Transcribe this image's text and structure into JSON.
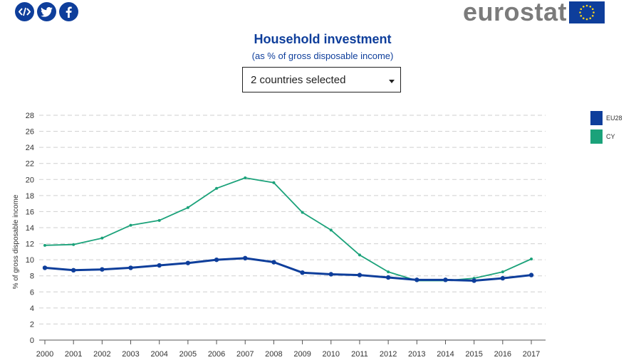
{
  "share": {
    "embed_icon": "embed-code-icon",
    "twitter_icon": "twitter-icon",
    "facebook_icon": "facebook-icon"
  },
  "brand": {
    "logo_text": "eurostat",
    "flag_icon": "eu-flag-icon",
    "accent": "#0e3e9b"
  },
  "header": {
    "title": "Household investment",
    "subtitle": "(as % of gross disposable income)"
  },
  "selector": {
    "value": "2 countries selected"
  },
  "chart_data": {
    "type": "line",
    "title": "Household investment",
    "subtitle": "(as % of gross disposable income)",
    "xlabel": "",
    "ylabel": "% of gross disposable income",
    "ylim": [
      0,
      28
    ],
    "ytick_step": 2,
    "grid": "horizontal-dashed",
    "legend_position": "top-right",
    "x": [
      "2000",
      "2001",
      "2002",
      "2003",
      "2004",
      "2005",
      "2006",
      "2007",
      "2008",
      "2009",
      "2010",
      "2011",
      "2012",
      "2013",
      "2014",
      "2015",
      "2016",
      "2017"
    ],
    "series": [
      {
        "name": "EU28",
        "color": "#0e3e9b",
        "values": [
          9.0,
          8.7,
          8.8,
          9.0,
          9.3,
          9.6,
          10.0,
          10.2,
          9.7,
          8.4,
          8.2,
          8.1,
          7.8,
          7.5,
          7.5,
          7.4,
          7.7,
          8.1
        ]
      },
      {
        "name": "CY",
        "color": "#1ba27a",
        "values": [
          11.8,
          11.9,
          12.7,
          14.3,
          14.9,
          16.5,
          18.9,
          20.2,
          19.6,
          15.9,
          13.7,
          10.6,
          8.5,
          7.4,
          7.4,
          7.7,
          8.5,
          10.1
        ]
      }
    ]
  }
}
